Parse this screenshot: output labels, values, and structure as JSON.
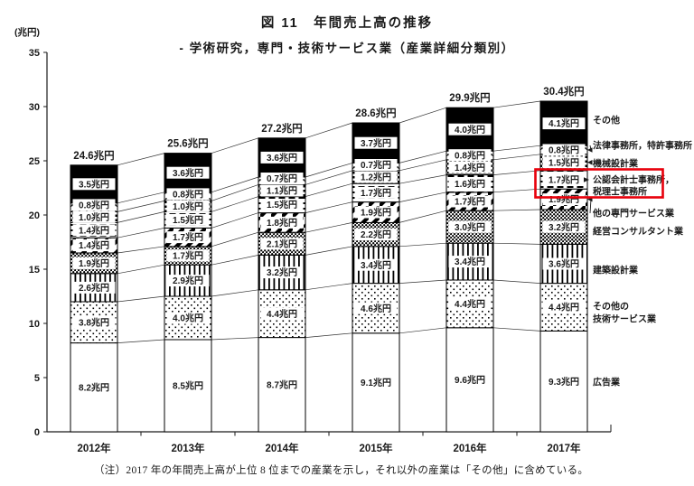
{
  "header": {
    "title": "図 11　年間売上高の推移",
    "subtitle": "- 学術研究，専門・技術サービス業（産業詳細分類別）"
  },
  "axis": {
    "unit_label": "(兆円)"
  },
  "footnote": "（注）2017 年の年間売上高が上位 8 位までの産業を示し，それ以外の産業は「その他」に含めている。",
  "chart_data": {
    "type": "bar",
    "stacked": true,
    "unit": "兆円",
    "ylim": [
      0,
      35
    ],
    "yticks": [
      0,
      5,
      10,
      15,
      20,
      25,
      30,
      35
    ],
    "categories": [
      "2012年",
      "2013年",
      "2014年",
      "2015年",
      "2016年",
      "2017年"
    ],
    "totals": [
      24.6,
      25.6,
      27.2,
      28.6,
      29.9,
      30.4
    ],
    "series": [
      {
        "name": "広告業",
        "pattern": "plain",
        "values": [
          8.2,
          8.5,
          8.7,
          9.1,
          9.6,
          9.3
        ]
      },
      {
        "name": "その他の技術サービス業",
        "pattern": "dots",
        "values": [
          3.8,
          4.0,
          4.4,
          4.6,
          4.4,
          4.4
        ]
      },
      {
        "name": "建築設計業",
        "pattern": "vstripes",
        "values": [
          2.6,
          2.9,
          3.2,
          3.4,
          3.4,
          3.6
        ]
      },
      {
        "name": "経営コンサルタント業",
        "pattern": "dense-dots",
        "values": [
          1.9,
          1.7,
          2.1,
          2.2,
          3.0,
          3.2
        ]
      },
      {
        "name": "他の専門サービス業",
        "pattern": "diagonal",
        "values": [
          1.4,
          1.7,
          1.8,
          1.9,
          1.7,
          1.9
        ]
      },
      {
        "name": "公認会計士事務所，税理士事務所",
        "pattern": "dashes",
        "values": [
          1.4,
          1.5,
          1.5,
          1.7,
          1.6,
          1.7
        ]
      },
      {
        "name": "機械設計業",
        "pattern": "checker",
        "values": [
          1.0,
          1.0,
          1.1,
          1.2,
          1.4,
          1.5
        ]
      },
      {
        "name": "法律事務所，特許事務所",
        "pattern": "scales",
        "values": [
          0.8,
          0.8,
          0.7,
          0.7,
          0.8,
          0.8
        ]
      },
      {
        "name": "その他",
        "pattern": "solid",
        "values": [
          3.5,
          3.6,
          3.6,
          3.7,
          4.0,
          4.1
        ]
      }
    ],
    "highlight": {
      "series": "公認会計士事務所，税理士事務所",
      "category": "2017年",
      "color": "#e8000b"
    }
  },
  "legend": {
    "items": [
      {
        "label": "その他",
        "lines": [
          "その他"
        ]
      },
      {
        "label": "法律事務所，特許事務所",
        "lines": [
          "法律事務所，特許事務所"
        ],
        "arrow": true
      },
      {
        "label": "機械設計業",
        "lines": [
          "機械設計業"
        ],
        "arrow": true
      },
      {
        "label": "公認会計士事務所，税理士事務所",
        "lines": [
          "公認会計士事務所，",
          "税理士事務所"
        ],
        "arrow": true,
        "highlighted": true
      },
      {
        "label": "他の専門サービス業",
        "lines": [
          "他の専門サービス業"
        ],
        "arrow": true
      },
      {
        "label": "経営コンサルタント業",
        "lines": [
          "経営コンサルタント業"
        ]
      },
      {
        "label": "建築設計業",
        "lines": [
          "建築設計業"
        ]
      },
      {
        "label": "その他の技術サービス業",
        "lines": [
          "その他の",
          "技術サービス業"
        ]
      },
      {
        "label": "広告業",
        "lines": [
          "広告業"
        ]
      }
    ]
  }
}
